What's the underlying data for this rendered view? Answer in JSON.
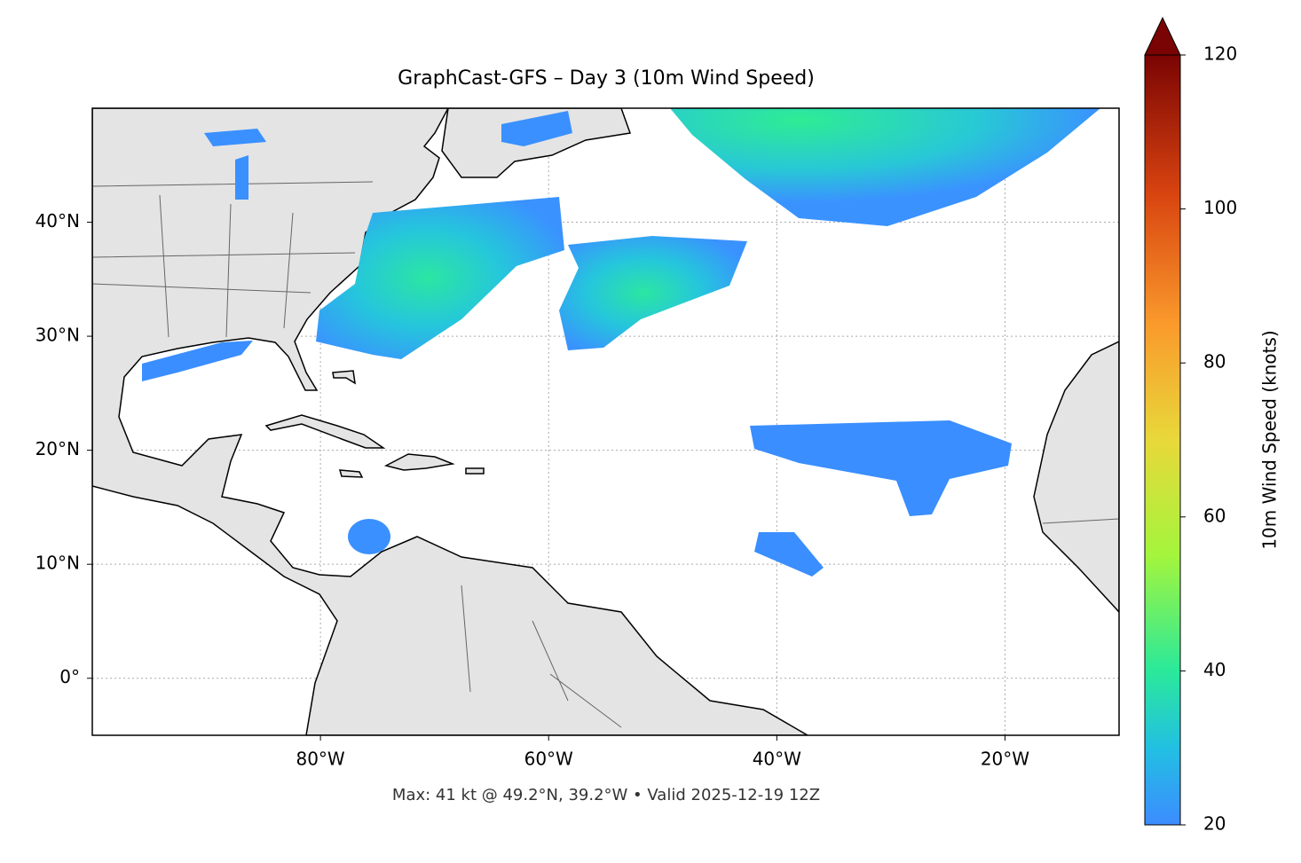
{
  "map": {
    "title": "GraphCast-GFS – Day 3 (10m Wind Speed)",
    "footer": "Max: 41 kt @ 49.2°N, 39.2°W • Valid 2025-12-19 12Z",
    "xlim": [
      -100,
      -10
    ],
    "ylim": [
      -5,
      50
    ],
    "xticks": [
      {
        "value": -80,
        "label": "80°W"
      },
      {
        "value": -60,
        "label": "60°W"
      },
      {
        "value": -40,
        "label": "40°W"
      },
      {
        "value": -20,
        "label": "20°W"
      }
    ],
    "yticks": [
      {
        "value": 0,
        "label": "0°"
      },
      {
        "value": 10,
        "label": "10°N"
      },
      {
        "value": 20,
        "label": "20°N"
      },
      {
        "value": 30,
        "label": "30°N"
      },
      {
        "value": 40,
        "label": "40°N"
      }
    ],
    "grid": true,
    "colorbar": {
      "label": "10m Wind Speed (knots)",
      "clim": [
        20,
        120
      ],
      "ticks": [
        20,
        40,
        60,
        80,
        100,
        120
      ]
    }
  }
}
